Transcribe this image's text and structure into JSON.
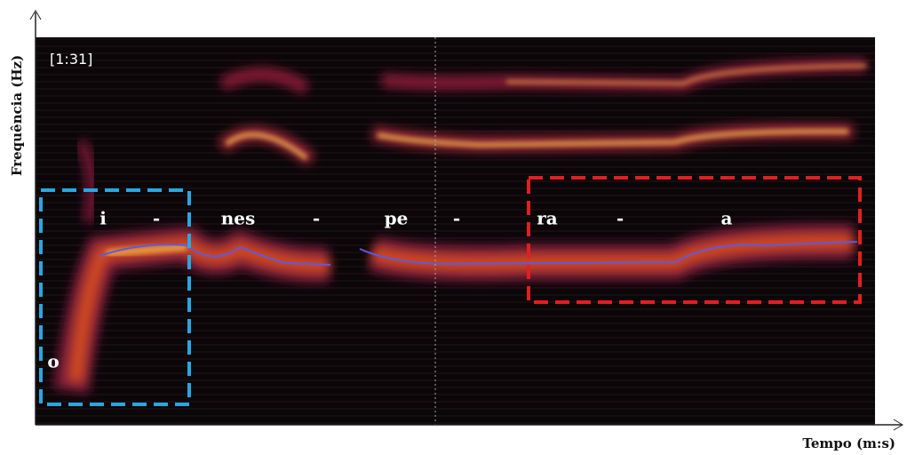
{
  "y_axis_label": "Frequência (Hz)",
  "x_axis_label": "Tempo (m:s)",
  "timestamp": "[1:31]",
  "syllables": [
    "o",
    "i",
    "-",
    "nes",
    "-",
    "pe",
    "-",
    "ra",
    "-",
    "a"
  ]
}
